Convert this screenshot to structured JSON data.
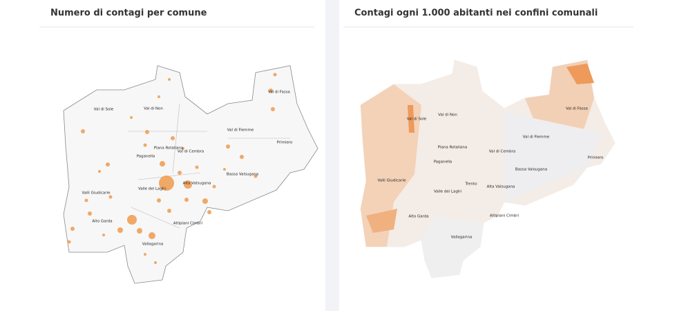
{
  "panels": [
    {
      "title": "Numero di contagi per comune",
      "labels": [
        "Val di Sole",
        "Val di Non",
        "Val di Fassa",
        "Val di Fiemme",
        "Primiero",
        "Piana Rotaliana",
        "Val di Cembra",
        "Paganella",
        "Bassa Valsugana",
        "Valli Giudicarie",
        "Valle dei Laghi",
        "Alta Valsugana",
        "Alto Garda",
        "Altipiani Cimbri",
        "Vallagarina"
      ]
    },
    {
      "title": "Contagi ogni 1.000 abitanti nei confini comunali",
      "labels": [
        "Val di Non",
        "Val di Sole",
        "Val di Fassa",
        "Val di Fiemme",
        "Primiero",
        "Piana Rotaliana",
        "Val di Cembra",
        "Paganella",
        "Bassa Valsugana",
        "Valli Giudicarie",
        "Trento",
        "Valle dei Laghi",
        "Alta Valsugana",
        "Alto Garda",
        "Altipiani Cimbri",
        "Vallagarina"
      ]
    }
  ]
}
